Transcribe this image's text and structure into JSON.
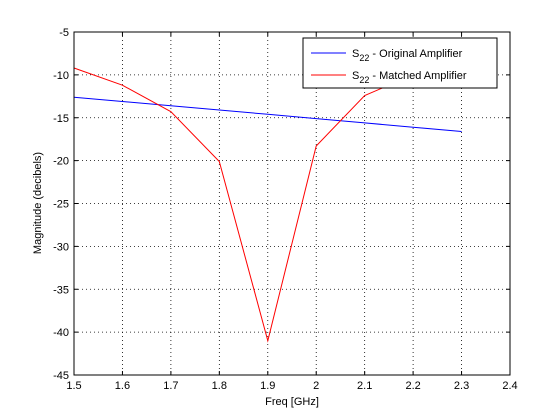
{
  "chart_data": {
    "type": "line",
    "xlabel": "Freq [GHz]",
    "ylabel": "Magnitude (decibels)",
    "xlim": [
      1.5,
      2.4
    ],
    "ylim": [
      -45,
      -5
    ],
    "xticks": [
      1.5,
      1.6,
      1.7,
      1.8,
      1.9,
      2.0,
      2.1,
      2.2,
      2.3,
      2.4
    ],
    "xtick_labels": [
      "1.5",
      "1.6",
      "1.7",
      "1.8",
      "1.9",
      "2",
      "2.1",
      "2.2",
      "2.3",
      "2.4"
    ],
    "yticks": [
      -45,
      -40,
      -35,
      -30,
      -25,
      -20,
      -15,
      -10,
      -5
    ],
    "ytick_labels": [
      "-45",
      "-40",
      "-35",
      "-30",
      "-25",
      "-20",
      "-15",
      "-10",
      "-5"
    ],
    "grid": true,
    "legend_position": "top-right",
    "series": [
      {
        "name": "S",
        "subscript": "22",
        "name_suffix": " - Original Amplifier",
        "color": "#0000ff",
        "x": [
          1.5,
          1.6,
          1.7,
          1.8,
          1.9,
          2.0,
          2.1,
          2.2,
          2.3
        ],
        "y": [
          -12.6,
          -13.1,
          -13.6,
          -14.1,
          -14.6,
          -15.1,
          -15.6,
          -16.1,
          -16.6
        ]
      },
      {
        "name": "S",
        "subscript": "22",
        "name_suffix": " - Matched Amplifier",
        "color": "#ff0000",
        "x": [
          1.5,
          1.6,
          1.7,
          1.8,
          1.9,
          2.0,
          2.1,
          2.2,
          2.3
        ],
        "y": [
          -9.2,
          -11.2,
          -14.3,
          -20.1,
          -41.0,
          -18.3,
          -12.4,
          -10.0,
          -8.5
        ]
      }
    ]
  }
}
